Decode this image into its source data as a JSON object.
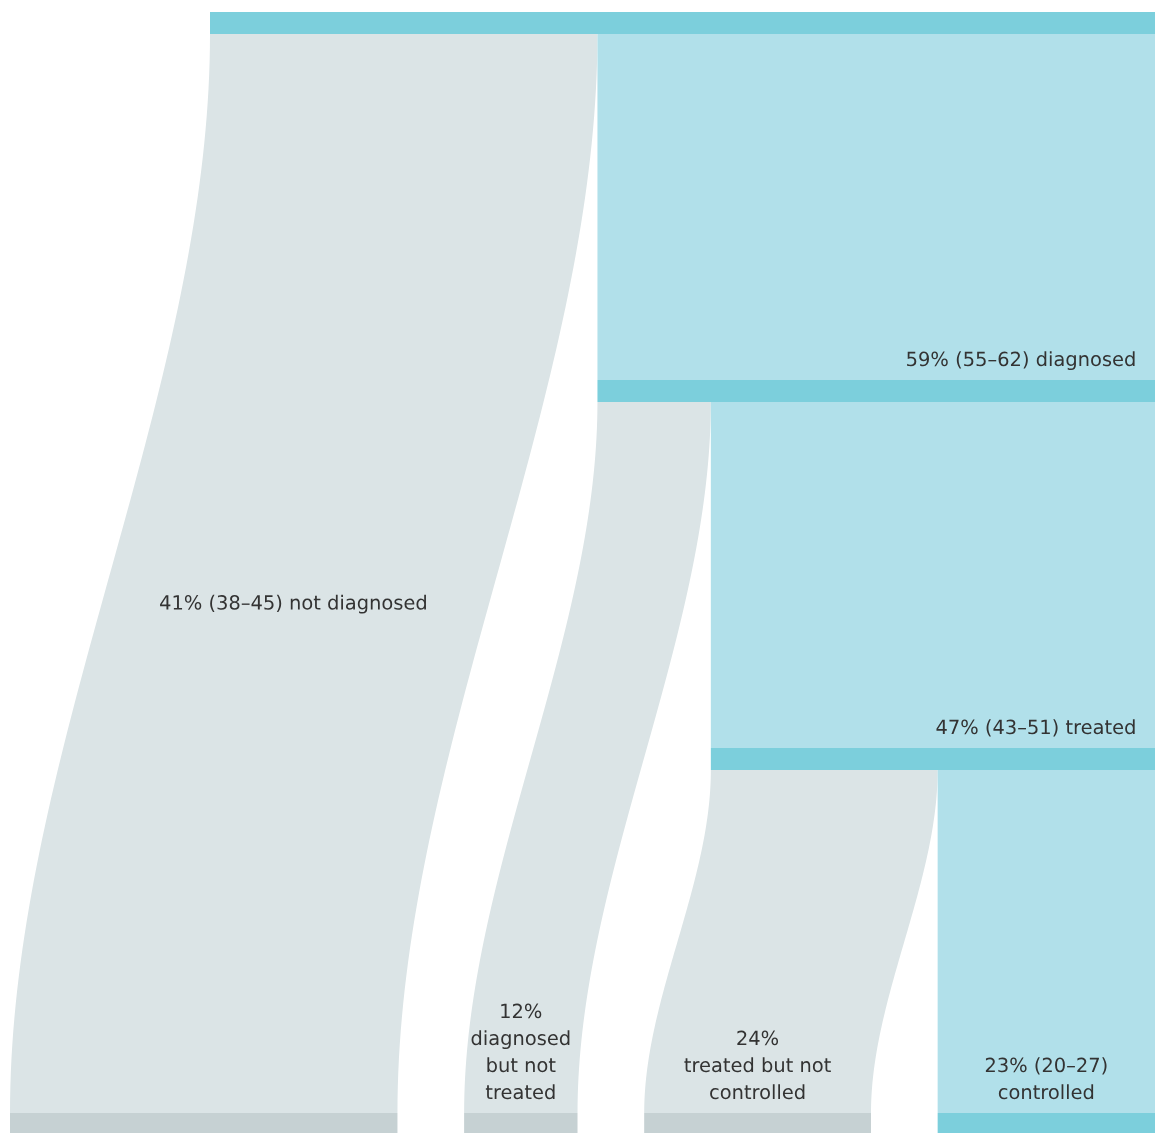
{
  "chart_data": {
    "type": "other",
    "values": [
      41,
      59,
      12,
      47,
      24,
      23
    ],
    "value_labels": [
      "41%",
      "59%",
      "12%",
      "47%",
      "24%",
      "23%"
    ],
    "categories": [
      "(38–45) not diagnosed",
      "(55–62) diagnosed",
      "\ndiagnosed\nbut not\ntreated",
      "(43–51) treated",
      "\ntreated but not\ncontrolled",
      "(20–27)\ncontrolled"
    ],
    "colors": [
      "#dbe4e6",
      "#b1e0ea",
      "#dbe4e6",
      "#b1e0ea",
      "#dbe4e6",
      "#b1e0ea"
    ]
  }
}
